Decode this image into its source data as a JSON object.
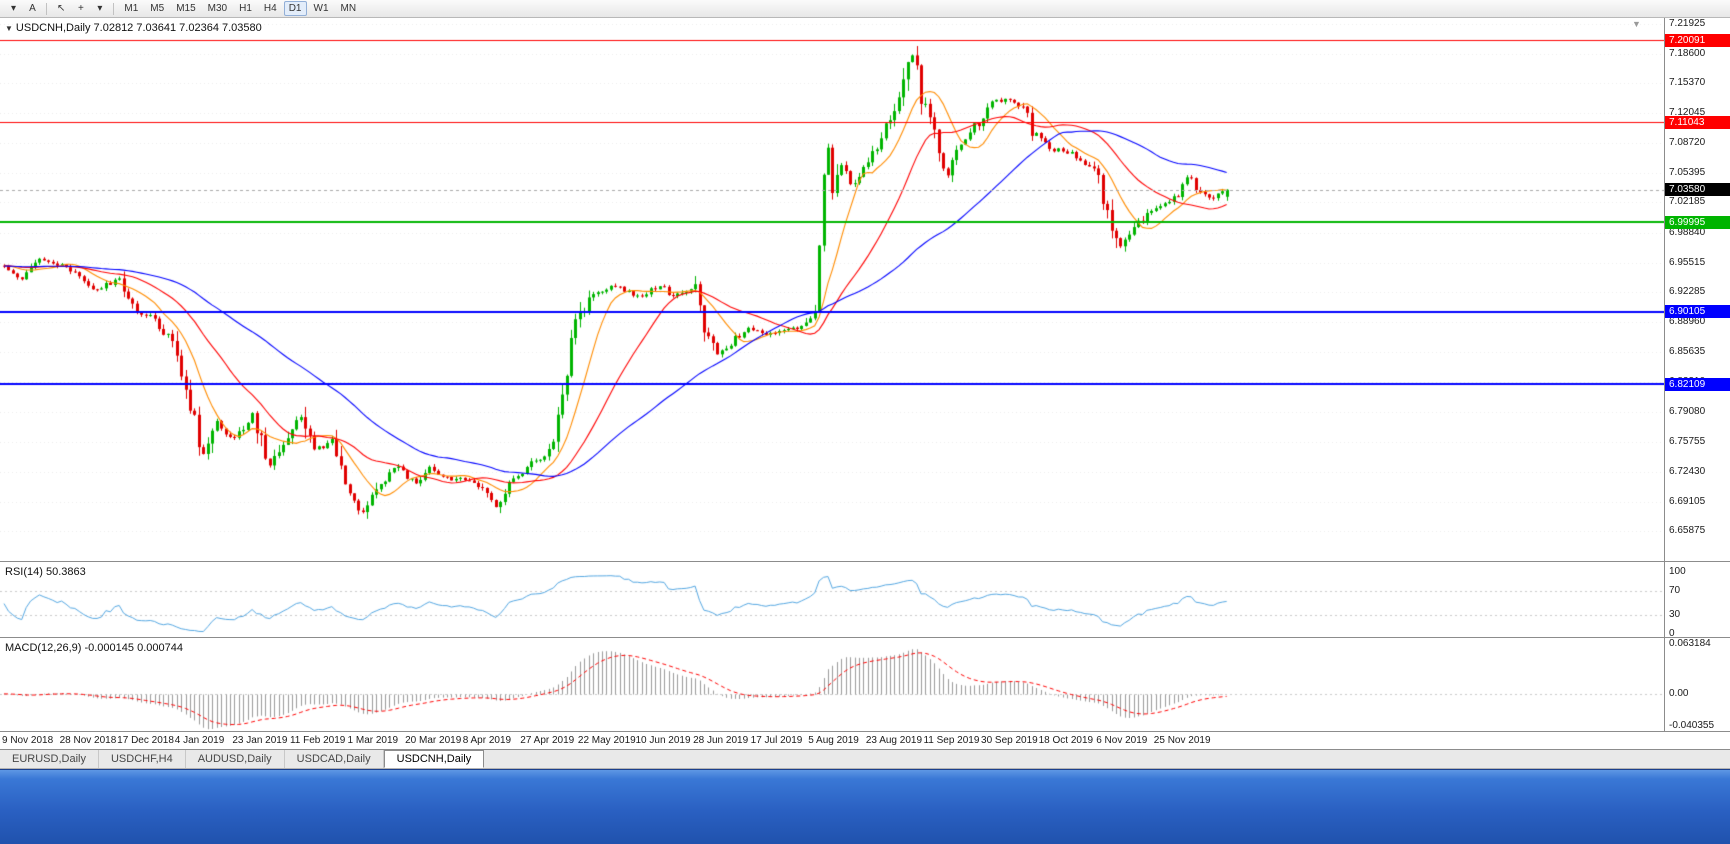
{
  "toolbar": {
    "icons": [
      {
        "name": "charts-dropdown-icon",
        "glyph": "▾"
      },
      {
        "name": "text-tool-icon",
        "glyph": "A"
      },
      {
        "name": "cursor-tool-icon",
        "glyph": "↖"
      },
      {
        "name": "crosshair-tool-icon",
        "glyph": "+"
      },
      {
        "name": "tools-dropdown-icon",
        "glyph": "▾"
      }
    ],
    "timeframes": [
      {
        "label": "M1",
        "active": false
      },
      {
        "label": "M5",
        "active": false
      },
      {
        "label": "M15",
        "active": false
      },
      {
        "label": "M30",
        "active": false
      },
      {
        "label": "H1",
        "active": false
      },
      {
        "label": "H4",
        "active": false
      },
      {
        "label": "D1",
        "active": true
      },
      {
        "label": "W1",
        "active": false
      },
      {
        "label": "MN",
        "active": false
      }
    ]
  },
  "tabs": {
    "items": [
      {
        "label": "EURUSD,Daily",
        "active": false
      },
      {
        "label": "USDCHF,H4",
        "active": false
      },
      {
        "label": "AUDUSD,Daily",
        "active": false
      },
      {
        "label": "USDCAD,Daily",
        "active": false
      },
      {
        "label": "USDCNH,Daily",
        "active": true
      }
    ]
  },
  "chart_data": {
    "type": "candlestick",
    "symbol": "USDCNH",
    "period": "Daily",
    "main": {
      "header": "USDCNH,Daily 7.02812 7.03641 7.02364 7.03580",
      "ohlc": {
        "open": "7.02812",
        "high": "7.03641",
        "low": "7.02364",
        "close": "7.03580"
      },
      "bar_count": 277,
      "bars_per_label": 13,
      "price_top": 7.231,
      "price_span": 0.594,
      "y_ticks": [
        "7.21925",
        "7.18600",
        "7.15370",
        "7.12045",
        "7.08720",
        "7.05395",
        "7.02185",
        "6.98840",
        "6.95515",
        "6.92285",
        "6.88960",
        "6.85635",
        "6.82310",
        "6.79080",
        "6.75755",
        "6.72430",
        "6.69105",
        "6.65875"
      ],
      "x_labels": [
        "9 Nov 2018",
        "28 Nov 2018",
        "17 Dec 2018",
        "4 Jan 2019",
        "23 Jan 2019",
        "11 Feb 2019",
        "1 Mar 2019",
        "20 Mar 2019",
        "8 Apr 2019",
        "27 Apr 2019",
        "22 May 2019",
        "10 Jun 2019",
        "28 Jun 2019",
        "17 Jul 2019",
        "5 Aug 2019",
        "23 Aug 2019",
        "11 Sep 2019",
        "30 Sep 2019",
        "18 Oct 2019",
        "6 Nov 2019",
        "25 Nov 2019"
      ],
      "horizontal_lines": [
        {
          "value": 7.20091,
          "label": "7.20091",
          "color": "#ff0000",
          "width": 1
        },
        {
          "value": 7.11043,
          "label": "7.11043",
          "color": "#ff0000",
          "width": 1
        },
        {
          "value": 6.99995,
          "label": "6.99995",
          "color": "#00b400",
          "width": 2
        },
        {
          "value": 6.90105,
          "label": "6.90105",
          "color": "#0000ff",
          "width": 2
        },
        {
          "value": 6.82109,
          "label": "6.82109",
          "color": "#0000ff",
          "width": 2
        }
      ],
      "bid_line": {
        "value": 7.0358,
        "label": "7.03580",
        "color": "#000000"
      },
      "colors": {
        "up": "#00b400",
        "down": "#e00000",
        "bid": "#a8a8a8",
        "grid": "#ebebeb"
      },
      "moving_averages": [
        {
          "period": 10,
          "color": "#ff8c00"
        },
        {
          "period": 25,
          "color": "#ff0000"
        },
        {
          "period": 55,
          "color": "#0000ff"
        }
      ],
      "trajectory": [
        [
          0,
          6.952
        ],
        [
          4,
          6.938
        ],
        [
          8,
          6.958
        ],
        [
          14,
          6.95
        ],
        [
          20,
          6.925
        ],
        [
          26,
          6.936
        ],
        [
          30,
          6.902
        ],
        [
          34,
          6.893
        ],
        [
          38,
          6.868
        ],
        [
          42,
          6.8
        ],
        [
          45,
          6.742
        ],
        [
          48,
          6.778
        ],
        [
          52,
          6.76
        ],
        [
          56,
          6.787
        ],
        [
          60,
          6.732
        ],
        [
          64,
          6.766
        ],
        [
          67,
          6.787
        ],
        [
          70,
          6.748
        ],
        [
          74,
          6.757
        ],
        [
          78,
          6.702
        ],
        [
          81,
          6.678
        ],
        [
          85,
          6.712
        ],
        [
          88,
          6.731
        ],
        [
          93,
          6.712
        ],
        [
          96,
          6.731
        ],
        [
          99,
          6.718
        ],
        [
          104,
          6.716
        ],
        [
          108,
          6.704
        ],
        [
          111,
          6.687
        ],
        [
          115,
          6.717
        ],
        [
          120,
          6.737
        ],
        [
          123,
          6.742
        ],
        [
          125,
          6.786
        ],
        [
          128,
          6.867
        ],
        [
          130,
          6.897
        ],
        [
          133,
          6.921
        ],
        [
          138,
          6.931
        ],
        [
          143,
          6.917
        ],
        [
          148,
          6.931
        ],
        [
          151,
          6.917
        ],
        [
          156,
          6.927
        ],
        [
          158,
          6.882
        ],
        [
          161,
          6.852
        ],
        [
          165,
          6.872
        ],
        [
          168,
          6.882
        ],
        [
          172,
          6.877
        ],
        [
          177,
          6.883
        ],
        [
          181,
          6.886
        ],
        [
          183,
          6.906
        ],
        [
          184,
          6.976
        ],
        [
          185,
          7.046
        ],
        [
          186,
          7.081
        ],
        [
          187,
          7.036
        ],
        [
          189,
          7.061
        ],
        [
          191,
          7.041
        ],
        [
          194,
          7.059
        ],
        [
          198,
          7.087
        ],
        [
          201,
          7.127
        ],
        [
          204,
          7.167
        ],
        [
          205,
          7.184
        ],
        [
          207,
          7.141
        ],
        [
          209,
          7.111
        ],
        [
          211,
          7.081
        ],
        [
          213,
          7.051
        ],
        [
          214,
          7.071
        ],
        [
          217,
          7.091
        ],
        [
          220,
          7.111
        ],
        [
          223,
          7.131
        ],
        [
          226,
          7.137
        ],
        [
          230,
          7.127
        ],
        [
          232,
          7.101
        ],
        [
          236,
          7.081
        ],
        [
          241,
          7.077
        ],
        [
          246,
          7.057
        ],
        [
          248,
          7.031
        ],
        [
          252,
          6.971
        ],
        [
          255,
          6.991
        ],
        [
          258,
          7.011
        ],
        [
          262,
          7.021
        ],
        [
          265,
          7.031
        ],
        [
          268,
          7.051
        ],
        [
          270,
          7.031
        ],
        [
          273,
          7.029
        ],
        [
          276,
          7.0358
        ]
      ]
    },
    "rsi": {
      "label": "RSI(14) 50.3863",
      "period": 14,
      "value": "50.3863",
      "color": "#53a6e1",
      "levels": [
        70,
        30
      ],
      "axis_labels": [
        {
          "value": 100,
          "text": "100"
        },
        {
          "value": 70,
          "text": "70"
        },
        {
          "value": 30,
          "text": "30"
        },
        {
          "value": 0,
          "text": "0"
        }
      ]
    },
    "macd": {
      "label": "MACD(12,26,9) -0.000145 0.000744",
      "fast": 12,
      "slow": 26,
      "signal": 9,
      "main_value": "-0.000145",
      "signal_value": "0.000744",
      "histogram_color": "#9a9a9a",
      "signal_color": "#ff0000",
      "max": 0.0632,
      "min": -0.0404,
      "axis_labels": [
        {
          "value": 0.0632,
          "text": "0.063184"
        },
        {
          "value": 0,
          "text": "0.00"
        },
        {
          "value": -0.0404,
          "text": "-0.040355"
        }
      ]
    }
  }
}
